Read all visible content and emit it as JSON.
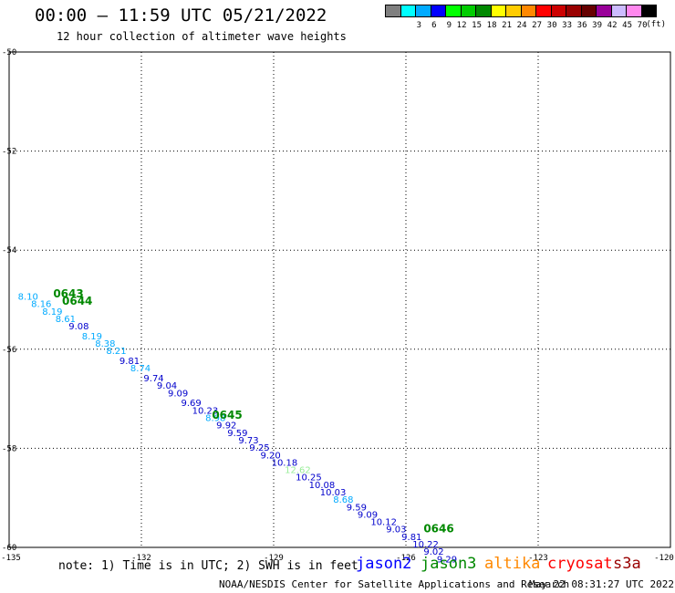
{
  "header": {
    "title": "00:00 — 11:59 UTC 05/21/2022",
    "subtitle": "12 hour collection of altimeter wave heights"
  },
  "legend": {
    "unit": "(ft)",
    "entries": [
      {
        "label": "",
        "color": "#7f7f7f"
      },
      {
        "label": "3",
        "color": "#00ffff"
      },
      {
        "label": "6",
        "color": "#00aaff"
      },
      {
        "label": "9",
        "color": "#0000ff"
      },
      {
        "label": "12",
        "color": "#00ff00"
      },
      {
        "label": "15",
        "color": "#00cc00"
      },
      {
        "label": "18",
        "color": "#008800"
      },
      {
        "label": "21",
        "color": "#ffff00"
      },
      {
        "label": "24",
        "color": "#ffcc00"
      },
      {
        "label": "27",
        "color": "#ff8800"
      },
      {
        "label": "30",
        "color": "#ff0000"
      },
      {
        "label": "33",
        "color": "#cc0000"
      },
      {
        "label": "36",
        "color": "#990000"
      },
      {
        "label": "39",
        "color": "#660000"
      },
      {
        "label": "42",
        "color": "#990099"
      },
      {
        "label": "45",
        "color": "#ccbbff"
      },
      {
        "label": "70",
        "color": "#ff88ee"
      },
      {
        "label": "",
        "color": "#000000"
      }
    ]
  },
  "map": {
    "lon_range": [
      -135,
      -120
    ],
    "lat_range": [
      -60,
      -50
    ],
    "lon_ticks": [
      {
        "value": -135,
        "label": "-135"
      },
      {
        "value": -132,
        "label": "-132"
      },
      {
        "value": -129,
        "label": "-129"
      },
      {
        "value": -126,
        "label": "-126"
      },
      {
        "value": -123,
        "label": "-123"
      },
      {
        "value": -120,
        "label": "-120"
      }
    ],
    "lat_ticks": [
      {
        "value": -50,
        "label": "-50"
      },
      {
        "value": -52,
        "label": "-52"
      },
      {
        "value": -54,
        "label": "-54"
      },
      {
        "value": -56,
        "label": "-56"
      },
      {
        "value": -58,
        "label": "-58"
      },
      {
        "value": -60,
        "label": "-60"
      }
    ],
    "observations": [
      {
        "lon": -134.8,
        "lat": -55.0,
        "swh": "8.10",
        "color": "#00aaff"
      },
      {
        "lon": -134.5,
        "lat": -55.15,
        "swh": "8.16",
        "color": "#00aaff"
      },
      {
        "lon": -134.25,
        "lat": -55.3,
        "swh": "8.19",
        "color": "#00aaff"
      },
      {
        "lon": -133.95,
        "lat": -55.45,
        "swh": "8.61",
        "color": "#00aaff"
      },
      {
        "lon": -133.65,
        "lat": -55.6,
        "swh": "9.08",
        "color": "#0000cc"
      },
      {
        "lon": -133.35,
        "lat": -55.8,
        "swh": "8.19",
        "color": "#00aaff"
      },
      {
        "lon": -133.05,
        "lat": -55.95,
        "swh": "8.38",
        "color": "#00aaff"
      },
      {
        "lon": -132.8,
        "lat": -56.1,
        "swh": "8.21",
        "color": "#00aaff"
      },
      {
        "lon": -132.5,
        "lat": -56.3,
        "swh": "9.81",
        "color": "#0000cc"
      },
      {
        "lon": -132.25,
        "lat": -56.45,
        "swh": "8.74",
        "color": "#00aaff"
      },
      {
        "lon": -131.95,
        "lat": -56.65,
        "swh": "9.74",
        "color": "#0000cc"
      },
      {
        "lon": -131.65,
        "lat": -56.8,
        "swh": "9.04",
        "color": "#0000cc"
      },
      {
        "lon": -131.4,
        "lat": -56.95,
        "swh": "9.09",
        "color": "#0000cc"
      },
      {
        "lon": -131.1,
        "lat": -57.15,
        "swh": "9.69",
        "color": "#0000cc"
      },
      {
        "lon": -130.85,
        "lat": -57.3,
        "swh": "10.23",
        "color": "#0000cc"
      },
      {
        "lon": -130.55,
        "lat": -57.45,
        "swh": "8.98",
        "color": "#00aaff"
      },
      {
        "lon": -130.3,
        "lat": -57.6,
        "swh": "9.92",
        "color": "#0000cc"
      },
      {
        "lon": -130.05,
        "lat": -57.75,
        "swh": "9.59",
        "color": "#0000cc"
      },
      {
        "lon": -129.8,
        "lat": -57.9,
        "swh": "9.73",
        "color": "#0000cc"
      },
      {
        "lon": -129.55,
        "lat": -58.05,
        "swh": "9.25",
        "color": "#0000cc"
      },
      {
        "lon": -129.3,
        "lat": -58.2,
        "swh": "9.20",
        "color": "#0000cc"
      },
      {
        "lon": -129.05,
        "lat": -58.35,
        "swh": "10.18",
        "color": "#0000cc"
      },
      {
        "lon": -128.75,
        "lat": -58.5,
        "swh": "12.62",
        "color": "#99ee99"
      },
      {
        "lon": -128.5,
        "lat": -58.65,
        "swh": "10.25",
        "color": "#0000cc"
      },
      {
        "lon": -128.2,
        "lat": -58.8,
        "swh": "10.08",
        "color": "#0000cc"
      },
      {
        "lon": -127.95,
        "lat": -58.95,
        "swh": "10.03",
        "color": "#0000cc"
      },
      {
        "lon": -127.65,
        "lat": -59.1,
        "swh": "8.68",
        "color": "#00aaff"
      },
      {
        "lon": -127.35,
        "lat": -59.25,
        "swh": "9.59",
        "color": "#0000cc"
      },
      {
        "lon": -127.1,
        "lat": -59.4,
        "swh": "9.09",
        "color": "#0000cc"
      },
      {
        "lon": -126.8,
        "lat": -59.55,
        "swh": "10.12",
        "color": "#0000cc"
      },
      {
        "lon": -126.45,
        "lat": -59.7,
        "swh": "9.03",
        "color": "#0000cc"
      },
      {
        "lon": -126.1,
        "lat": -59.85,
        "swh": "9.81",
        "color": "#0000cc"
      },
      {
        "lon": -125.85,
        "lat": -60.0,
        "swh": "10.22",
        "color": "#0000cc"
      },
      {
        "lon": -125.6,
        "lat": -60.15,
        "swh": "9.02",
        "color": "#0000cc"
      },
      {
        "lon": -125.3,
        "lat": -60.3,
        "swh": "9.29",
        "color": "#0000cc"
      }
    ],
    "time_labels": [
      {
        "lon": -134.0,
        "lat": -54.95,
        "text": "0643"
      },
      {
        "lon": -133.8,
        "lat": -55.1,
        "text": "0644"
      },
      {
        "lon": -130.4,
        "lat": -57.4,
        "text": "0645"
      },
      {
        "lon": -125.6,
        "lat": -59.7,
        "text": "0646"
      }
    ],
    "time_label_color": "#008800"
  },
  "footer": {
    "note": "note: 1) Time is in UTC; 2) SWH is in feet",
    "satellites": [
      {
        "name": "jason2",
        "color": "#0000ff"
      },
      {
        "name": "jason3",
        "color": "#008800"
      },
      {
        "name": "altika",
        "color": "#ff8800"
      },
      {
        "name": "cryosat",
        "color": "#ff0000"
      },
      {
        "name": "s3a",
        "color": "#990000"
      }
    ],
    "credit": "NOAA/NESDIS Center for Satellite Applications and Research",
    "stamp": "May 22 08:31:27 UTC 2022"
  }
}
